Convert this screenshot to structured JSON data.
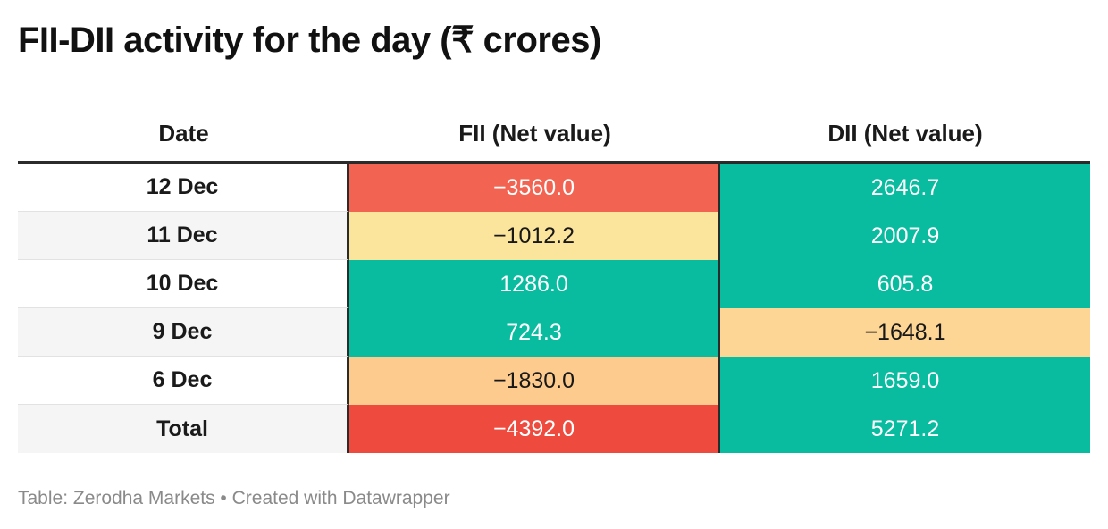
{
  "title": "FII-DII activity for the day (₹ crores)",
  "footer": "Table: Zerodha Markets • Created with Datawrapper",
  "columns": [
    "Date",
    "FII (Net value)",
    "DII (Net value)"
  ],
  "colors": {
    "red": "#f26451",
    "dark_red": "#ee4a3e",
    "light_yellow": "#fbe49c",
    "peach": "#fdcb8e",
    "light_orange": "#fdd695",
    "teal": "#09bca0",
    "text_dark": "#181818",
    "text_light": "#ffffff"
  },
  "chart_data": {
    "type": "table",
    "title": "FII-DII activity for the day (₹ crores)",
    "columns": [
      "Date",
      "FII (Net value)",
      "DII (Net value)"
    ],
    "rows": [
      {
        "date": "12 Dec",
        "fii": "−3560.0",
        "dii": "2646.7",
        "fii_value": -3560.0,
        "dii_value": 2646.7,
        "fii_color": "#f26451",
        "dii_color": "#09bca0",
        "fii_text": "#ffffff",
        "dii_text": "#ffffff"
      },
      {
        "date": "11 Dec",
        "fii": "−1012.2",
        "dii": "2007.9",
        "fii_value": -1012.2,
        "dii_value": 2007.9,
        "fii_color": "#fbe49c",
        "dii_color": "#09bca0",
        "fii_text": "#181818",
        "dii_text": "#ffffff"
      },
      {
        "date": "10 Dec",
        "fii": "1286.0",
        "dii": "605.8",
        "fii_value": 1286.0,
        "dii_value": 605.8,
        "fii_color": "#09bca0",
        "dii_color": "#09bca0",
        "fii_text": "#ffffff",
        "dii_text": "#ffffff"
      },
      {
        "date": "9 Dec",
        "fii": "724.3",
        "dii": "−1648.1",
        "fii_value": 724.3,
        "dii_value": -1648.1,
        "fii_color": "#09bca0",
        "dii_color": "#fdd695",
        "fii_text": "#ffffff",
        "dii_text": "#181818"
      },
      {
        "date": "6 Dec",
        "fii": "−1830.0",
        "dii": "1659.0",
        "fii_value": -1830.0,
        "dii_value": 1659.0,
        "fii_color": "#fdcb8e",
        "dii_color": "#09bca0",
        "fii_text": "#181818",
        "dii_text": "#ffffff"
      },
      {
        "date": "Total",
        "fii": "−4392.0",
        "dii": "5271.2",
        "fii_value": -4392.0,
        "dii_value": 5271.2,
        "fii_color": "#ee4a3e",
        "dii_color": "#09bca0",
        "fii_text": "#ffffff",
        "dii_text": "#ffffff"
      }
    ]
  }
}
